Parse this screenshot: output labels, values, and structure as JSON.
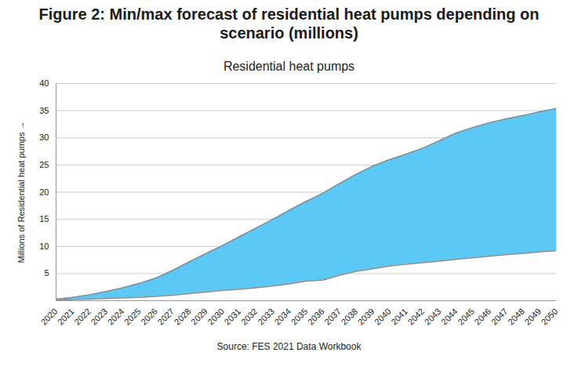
{
  "chart_data": {
    "type": "area",
    "title": "Figure 2: Min/max forecast of residential heat pumps depending on scenario (millions)",
    "subtitle": "Residential heat pumps",
    "caption": "Source: FES 2021 Data Workbook",
    "y_label": "Millions of Residential heat pumps",
    "x": [
      2020,
      2021,
      2022,
      2023,
      2024,
      2025,
      2026,
      2027,
      2028,
      2029,
      2030,
      2031,
      2032,
      2033,
      2034,
      2035,
      2036,
      2037,
      2038,
      2039,
      2040,
      2041,
      2042,
      2043,
      2044,
      2045,
      2046,
      2047,
      2048,
      2049,
      2050
    ],
    "low": [
      0.1,
      0.2,
      0.3,
      0.4,
      0.5,
      0.6,
      0.8,
      1.0,
      1.3,
      1.6,
      1.9,
      2.1,
      2.4,
      2.7,
      3.1,
      3.6,
      3.8,
      4.7,
      5.4,
      5.9,
      6.4,
      6.7,
      7.0,
      7.3,
      7.6,
      7.9,
      8.2,
      8.5,
      8.7,
      9.0,
      9.2
    ],
    "high": [
      0.3,
      0.6,
      1.1,
      1.7,
      2.4,
      3.2,
      4.2,
      5.6,
      7.2,
      8.7,
      10.2,
      11.8,
      13.4,
      15.0,
      16.7,
      18.3,
      19.8,
      21.6,
      23.3,
      24.8,
      26.0,
      27.0,
      28.1,
      29.5,
      30.9,
      31.9,
      32.8,
      33.5,
      34.1,
      34.8,
      35.4
    ],
    "color": "#5bc8f5",
    "xlim": [
      2020,
      2050
    ],
    "xticks": [
      2020,
      2021,
      2022,
      2023,
      2024,
      2025,
      2026,
      2027,
      2028,
      2029,
      2030,
      2031,
      2032,
      2033,
      2034,
      2035,
      2036,
      2037,
      2038,
      2039,
      2040,
      2041,
      2042,
      2043,
      2044,
      2045,
      2046,
      2047,
      2048,
      2049,
      2050
    ],
    "ylim": [
      0,
      40
    ],
    "yticks": [
      5,
      10,
      15,
      20,
      25,
      30,
      35,
      40
    ],
    "grid": true
  }
}
